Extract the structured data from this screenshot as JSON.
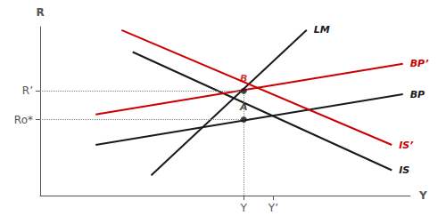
{
  "chart_data": {
    "type": "line",
    "xlabel": "Y",
    "ylabel": "R",
    "xlim": [
      0,
      10
    ],
    "ylim": [
      0,
      10
    ],
    "xticks": [
      {
        "value": 5.5,
        "label": "Y"
      },
      {
        "value": 6.3,
        "label": "Y’"
      }
    ],
    "yticks": [
      {
        "value": 4.5,
        "label": "Ro*"
      },
      {
        "value": 6.2,
        "label": "R’"
      }
    ],
    "grid": false,
    "series": [
      {
        "name": "LM",
        "color": "#1a1a1a",
        "x": [
          3.0,
          7.2
        ],
        "values": [
          1.2,
          9.8
        ]
      },
      {
        "name": "IS",
        "color": "#1a1a1a",
        "x": [
          2.5,
          9.5
        ],
        "values": [
          8.5,
          1.5
        ]
      },
      {
        "name": "BP",
        "color": "#1a1a1a",
        "x": [
          1.5,
          9.8
        ],
        "values": [
          3.0,
          6.0
        ]
      },
      {
        "name": "IS’",
        "color": "#cc0000",
        "x": [
          2.2,
          9.5
        ],
        "values": [
          9.8,
          3.0
        ]
      },
      {
        "name": "BP’",
        "color": "#cc0000",
        "x": [
          1.5,
          9.8
        ],
        "values": [
          4.8,
          7.8
        ]
      }
    ],
    "points": [
      {
        "label": "A",
        "x": 5.5,
        "y": 4.5,
        "color": "#1a1a1a"
      },
      {
        "label": "B",
        "x": 5.5,
        "y": 6.2,
        "color": "#cc0000"
      }
    ]
  }
}
